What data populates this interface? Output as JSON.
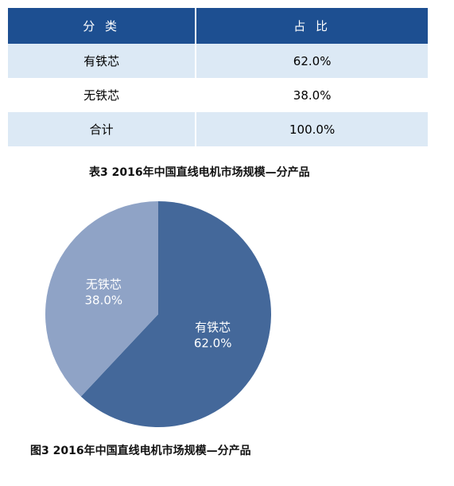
{
  "table": {
    "header": [
      "分 类",
      "占 比"
    ],
    "rows": [
      [
        "有铁芯",
        "62.0%"
      ],
      [
        "无铁芯",
        "38.0%"
      ],
      [
        "合计",
        "100.0%"
      ]
    ]
  },
  "table_caption": "表3  2016年中国直线电机市场规模—分产品",
  "chart_data": {
    "type": "pie",
    "categories": [
      "有铁芯",
      "无铁芯"
    ],
    "values": [
      62.0,
      38.0
    ],
    "value_labels": [
      "62.0%",
      "38.0%"
    ],
    "colors": [
      "#44689a",
      "#8fa3c6"
    ]
  },
  "figure_caption": "图3  2016年中国直线电机市场规模—分产品"
}
